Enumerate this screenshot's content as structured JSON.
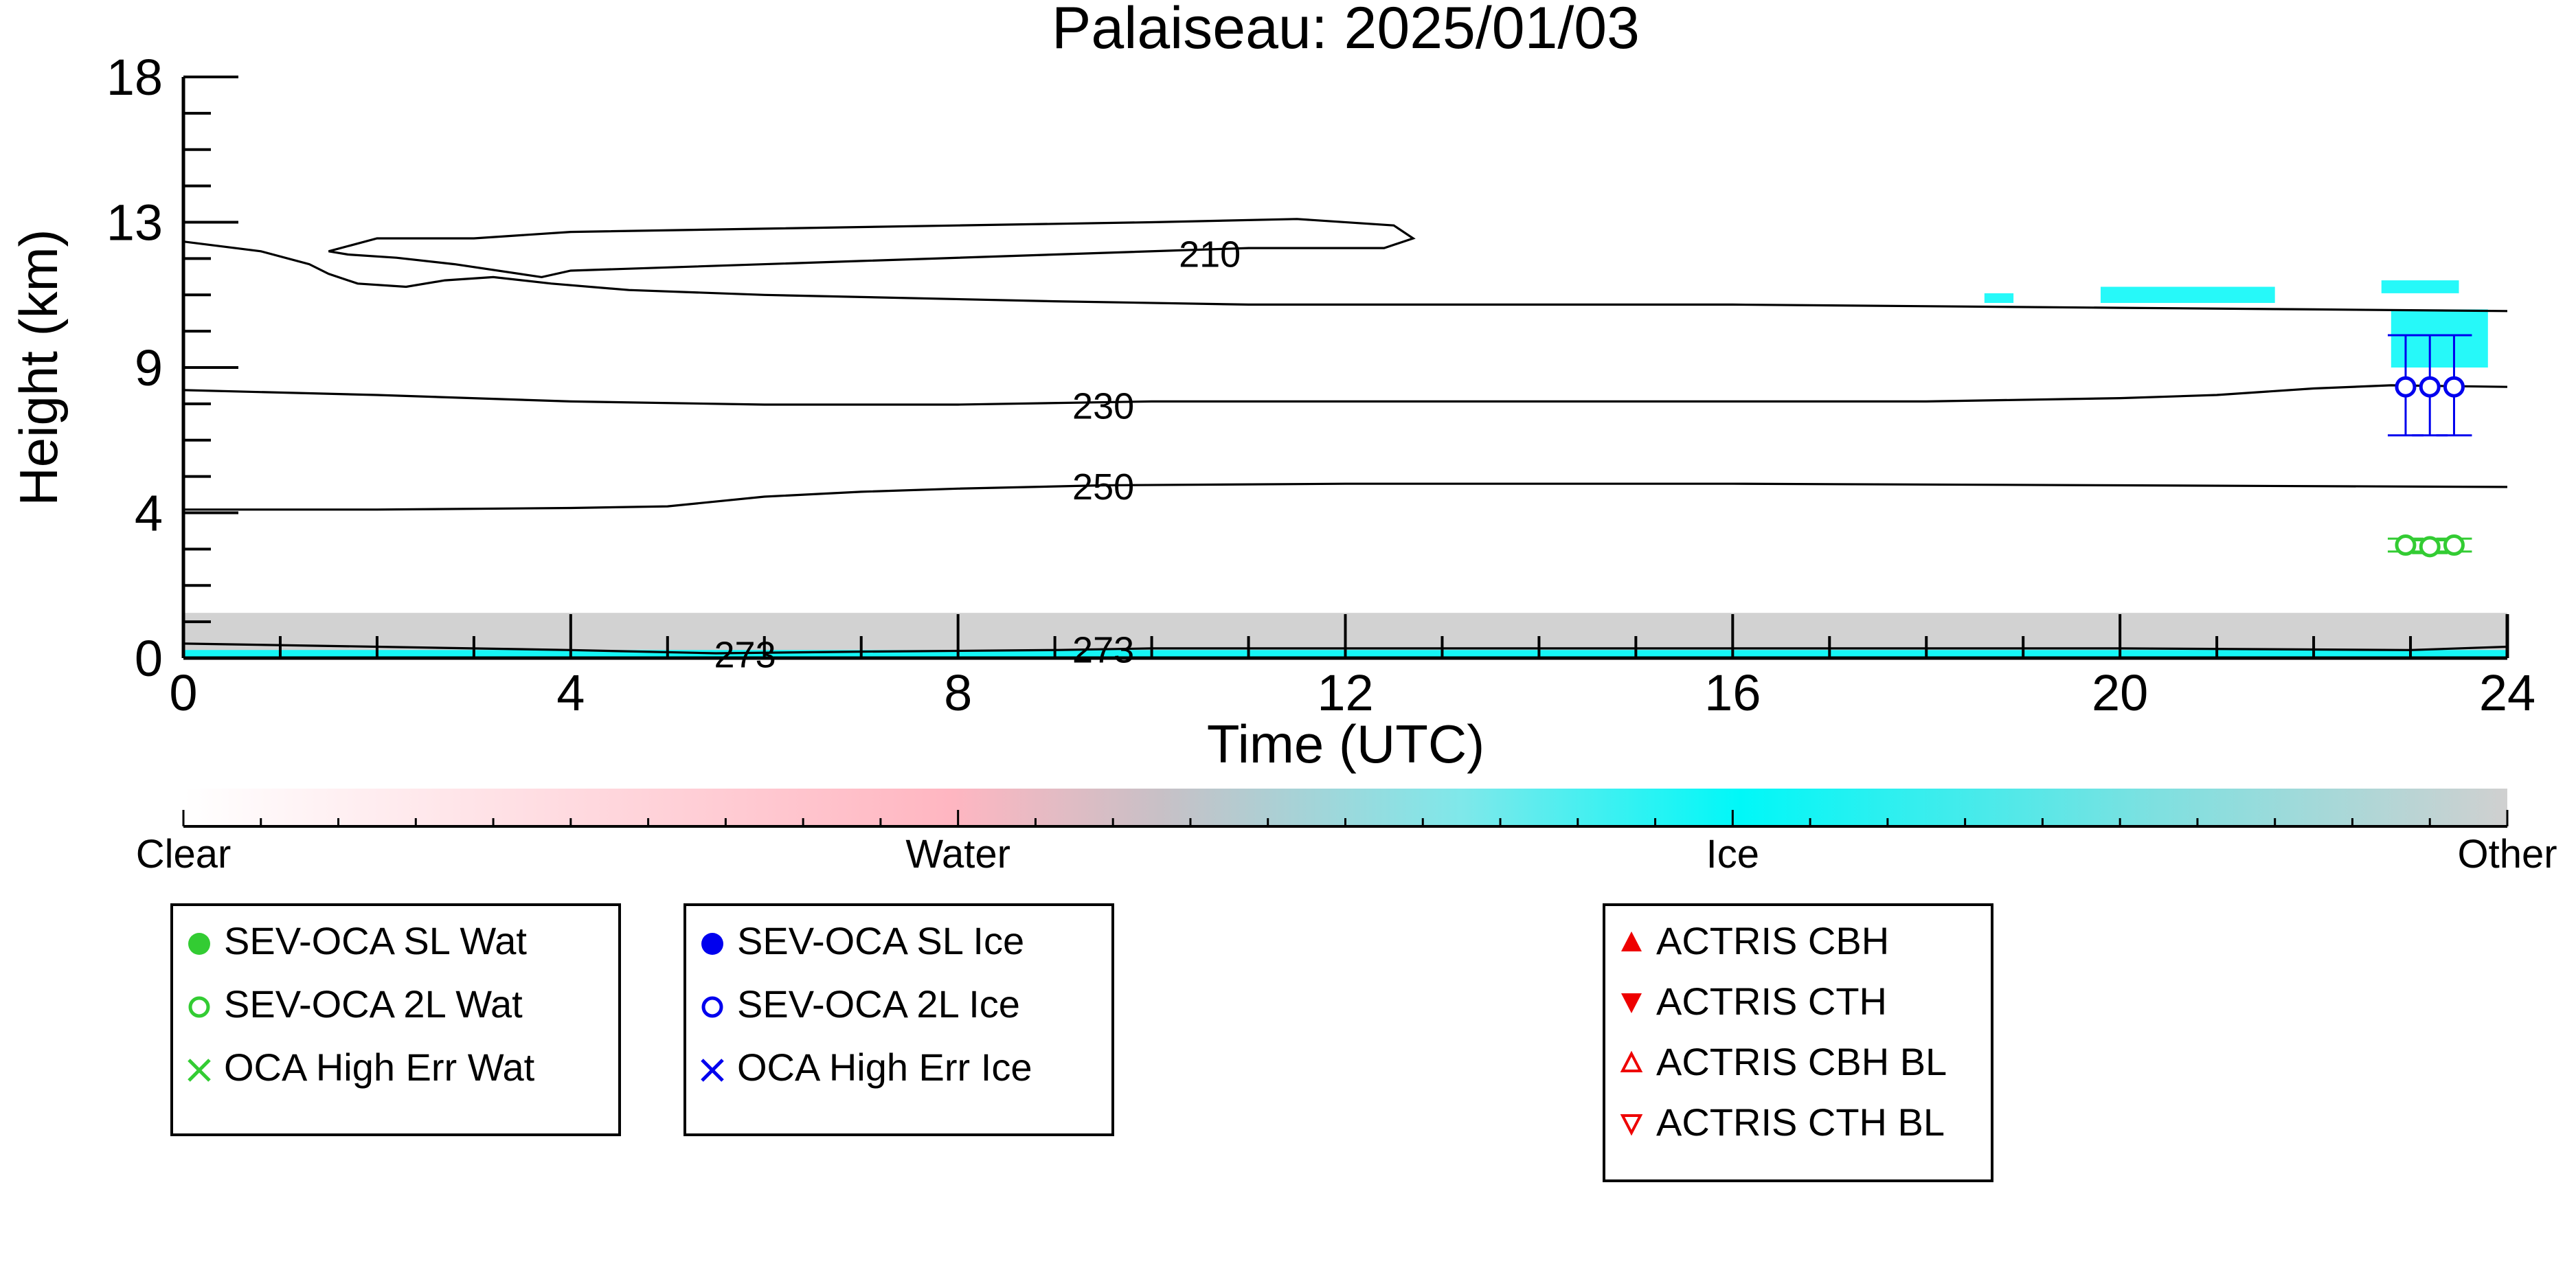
{
  "chart_data": {
    "type": "scatter",
    "title": "Palaiseau: 2025/01/03",
    "xlabel": "Time (UTC)",
    "ylabel": "Height (km)",
    "xlim": [
      0,
      24
    ],
    "ylim": [
      0,
      18
    ],
    "x_ticks": [
      "0",
      "4",
      "8",
      "12",
      "16",
      "20",
      "24"
    ],
    "y_ticks": [
      "0",
      "4",
      "9",
      "13",
      "18"
    ],
    "grid": false,
    "background_mask": {
      "description_colors": {
        "Other": "#d0d0d0",
        "Ice": "#00f8f8",
        "Water": "#ffb6c1"
      },
      "other_layer_km": [
        0,
        1.4
      ],
      "ice_cloud_patches": [
        {
          "x0": 18.6,
          "x1": 18.9,
          "y0": 11.0,
          "y1": 11.3
        },
        {
          "x0": 19.8,
          "x1": 21.6,
          "y0": 11.0,
          "y1": 11.5
        },
        {
          "x0": 22.7,
          "x1": 23.5,
          "y0": 11.3,
          "y1": 11.7
        },
        {
          "x0": 22.8,
          "x1": 23.8,
          "y0": 9.0,
          "y1": 10.8
        }
      ]
    },
    "contours": [
      {
        "level": "210",
        "x": [
          0,
          0.8,
          1.3,
          1.5,
          1.8,
          2.3,
          2.7,
          3.2,
          3.8,
          4.6,
          6,
          9,
          11,
          13,
          16,
          20,
          22,
          24
        ],
        "y": [
          12.9,
          12.6,
          12.2,
          11.9,
          11.6,
          11.5,
          11.7,
          11.8,
          11.6,
          11.4,
          11.25,
          11.05,
          10.95,
          10.95,
          10.95,
          10.85,
          10.8,
          10.75
        ]
      },
      {
        "level": "210",
        "closed": true,
        "x": [
          1.5,
          2.0,
          3.0,
          4.0,
          6,
          8,
          10,
          11.5,
          12.5,
          12.7,
          12.4,
          11,
          9,
          7,
          5,
          4,
          3.7,
          2.8,
          2.2,
          1.7
        ],
        "y": [
          12.6,
          13.0,
          13.0,
          13.2,
          13.3,
          13.4,
          13.5,
          13.6,
          13.4,
          13.0,
          12.7,
          12.7,
          12.5,
          12.3,
          12.1,
          12.0,
          11.8,
          12.2,
          12.4,
          12.5
        ]
      },
      {
        "level": "230",
        "x": [
          0,
          2,
          4,
          6,
          8,
          10,
          12,
          14,
          16,
          18,
          20,
          21,
          22,
          22.8,
          24
        ],
        "y": [
          8.3,
          8.15,
          7.95,
          7.85,
          7.85,
          7.95,
          7.95,
          7.95,
          7.95,
          7.95,
          8.05,
          8.15,
          8.35,
          8.45,
          8.4
        ]
      },
      {
        "level": "250",
        "x": [
          0,
          2,
          4,
          5,
          6,
          7,
          8,
          9.5,
          12,
          16,
          20,
          24
        ],
        "y": [
          4.6,
          4.6,
          4.65,
          4.7,
          5.0,
          5.15,
          5.25,
          5.35,
          5.4,
          5.4,
          5.35,
          5.3
        ]
      },
      {
        "level": "273",
        "x": [
          0,
          2,
          4,
          5.5,
          7,
          9,
          10,
          12,
          16,
          20,
          23,
          24
        ],
        "y": [
          0.45,
          0.35,
          0.25,
          0.15,
          0.2,
          0.25,
          0.3,
          0.3,
          0.3,
          0.3,
          0.25,
          0.35
        ]
      }
    ],
    "contour_labels": [
      {
        "text": "210",
        "x": 10.6,
        "y": 12.5
      },
      {
        "text": "230",
        "x": 9.5,
        "y": 7.8
      },
      {
        "text": "250",
        "x": 9.5,
        "y": 5.3
      },
      {
        "text": "273",
        "x": 9.5,
        "y": 0.25
      },
      {
        "text": "273",
        "x": 5.8,
        "y": 0.1
      }
    ],
    "series": [
      {
        "name": "SEV-OCA 2L Ice",
        "marker": "open-circle",
        "color": "#0000ee",
        "points": [
          {
            "x": 22.95,
            "y": 8.4,
            "ymin": 6.9,
            "ymax": 10.0
          },
          {
            "x": 23.2,
            "y": 8.4,
            "ymin": 6.9,
            "ymax": 10.0
          },
          {
            "x": 23.45,
            "y": 8.4,
            "ymin": 6.9,
            "ymax": 10.0
          }
        ]
      },
      {
        "name": "SEV-OCA 2L Wat",
        "marker": "open-circle",
        "color": "#33cc33",
        "points": [
          {
            "x": 22.95,
            "y": 3.5,
            "ymin": 3.3,
            "ymax": 3.7
          },
          {
            "x": 23.2,
            "y": 3.45,
            "ymin": 3.25,
            "ymax": 3.65
          },
          {
            "x": 23.45,
            "y": 3.5,
            "ymin": 3.3,
            "ymax": 3.7
          }
        ]
      }
    ],
    "colorbar": {
      "labels": [
        "Clear",
        "Water",
        "Ice",
        "Other"
      ],
      "stops": [
        {
          "pos": 0,
          "color": "#ffffff"
        },
        {
          "pos": 0.33,
          "color": "#ffb6c1"
        },
        {
          "pos": 0.42,
          "color": "#c8c0c6"
        },
        {
          "pos": 0.55,
          "color": "#7fe8ea"
        },
        {
          "pos": 0.67,
          "color": "#00f8f8"
        },
        {
          "pos": 0.85,
          "color": "#7fe0e0"
        },
        {
          "pos": 1,
          "color": "#d0d0d0"
        }
      ]
    },
    "legends": [
      {
        "entries": [
          {
            "label": "SEV-OCA SL Wat",
            "symbol": "filled-circle",
            "color": "#33cc33"
          },
          {
            "label": "SEV-OCA 2L Wat",
            "symbol": "open-circle",
            "color": "#33cc33"
          },
          {
            "label": "OCA High Err Wat",
            "symbol": "x",
            "color": "#33cc33"
          }
        ]
      },
      {
        "entries": [
          {
            "label": "SEV-OCA SL Ice",
            "symbol": "filled-circle",
            "color": "#0000ee"
          },
          {
            "label": "SEV-OCA 2L Ice",
            "symbol": "open-circle",
            "color": "#0000ee"
          },
          {
            "label": "OCA High Err Ice",
            "symbol": "x",
            "color": "#0000ee"
          }
        ]
      },
      {
        "entries": [
          {
            "label": "ACTRIS CBH",
            "symbol": "triangle-up-filled",
            "color": "#ee0000"
          },
          {
            "label": "ACTRIS CTH",
            "symbol": "triangle-down-filled",
            "color": "#ee0000"
          },
          {
            "label": "ACTRIS CBH BL",
            "symbol": "triangle-up-open",
            "color": "#ee0000"
          },
          {
            "label": "ACTRIS CTH BL",
            "symbol": "triangle-down-open",
            "color": "#ee0000"
          }
        ]
      }
    ]
  }
}
